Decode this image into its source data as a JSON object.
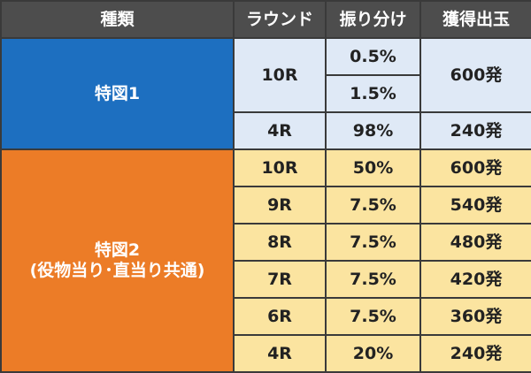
{
  "header": {
    "type": "種類",
    "round": "ラウンド",
    "split": "振り分け",
    "payout": "獲得出玉"
  },
  "group1": {
    "type_label": "特図1",
    "color": "#1d6fc0",
    "cell_color": "#dfe9f6",
    "rows": [
      {
        "round": "10R",
        "splits": [
          "0.5%",
          "1.5%"
        ],
        "payout": "600発"
      },
      {
        "round": "4R",
        "splits": [
          "98%"
        ],
        "payout": "240発"
      }
    ]
  },
  "group2": {
    "type_label": "特図2",
    "type_sublabel": "(役物当り･直当り共通)",
    "color": "#ec7c27",
    "cell_color": "#fbe4a0",
    "rows": [
      {
        "round": "10R",
        "split": "50%",
        "payout": "600発"
      },
      {
        "round": "9R",
        "split": "7.5%",
        "payout": "540発"
      },
      {
        "round": "8R",
        "split": "7.5%",
        "payout": "480発"
      },
      {
        "round": "7R",
        "split": "7.5%",
        "payout": "420発"
      },
      {
        "round": "6R",
        "split": "7.5%",
        "payout": "360発"
      },
      {
        "round": "4R",
        "split": "20%",
        "payout": "240発"
      }
    ]
  }
}
